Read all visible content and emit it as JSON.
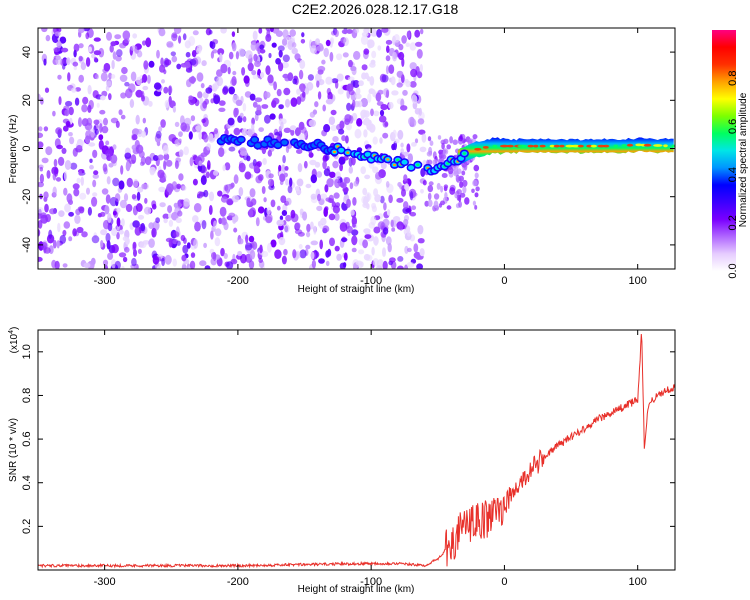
{
  "title": "C2E2.2026.028.12.17.G18",
  "chart_data": [
    {
      "type": "heatmap",
      "panel": "spectrogram",
      "xlabel": "Height of straight line (km)",
      "ylabel": "Frequency (Hz)",
      "xlim": [
        -350,
        128
      ],
      "ylim": [
        -50,
        50
      ],
      "xticks": [
        -300,
        -200,
        -100,
        0,
        100
      ],
      "xtick_labels": [
        "-300",
        "-200",
        "-100",
        "0",
        "100"
      ],
      "yticks": [
        -40,
        -20,
        0,
        20,
        40
      ],
      "ytick_labels": [
        "-40",
        "-20",
        "0",
        "20",
        "40"
      ],
      "colorbar": {
        "label": "Normalized spectral amplitude",
        "range": [
          0,
          1
        ],
        "ticks": [
          0,
          0.2,
          0.4,
          0.6,
          0.8
        ],
        "tick_labels": [
          "0.0",
          "0.2",
          "0.4",
          "0.6",
          "0.8"
        ],
        "colors": [
          "#ffffff",
          "#e6ccff",
          "#b066ff",
          "#7a00ff",
          "#3b00ff",
          "#0000ff",
          "#0096ff",
          "#00e6e6",
          "#00ff60",
          "#7dff00",
          "#ffff00",
          "#ffa000",
          "#ff3000",
          "#ff0000",
          "#ff0080"
        ]
      },
      "trace_center": [
        {
          "x": -215,
          "y": 3
        },
        {
          "x": -190,
          "y": 2.5
        },
        {
          "x": -160,
          "y": 2
        },
        {
          "x": -140,
          "y": 1
        },
        {
          "x": -120,
          "y": -1
        },
        {
          "x": -100,
          "y": -4
        },
        {
          "x": -80,
          "y": -6
        },
        {
          "x": -65,
          "y": -8
        },
        {
          "x": -55,
          "y": -9
        },
        {
          "x": -45,
          "y": -7
        },
        {
          "x": -35,
          "y": -4
        },
        {
          "x": -25,
          "y": -1
        },
        {
          "x": -10,
          "y": 1
        },
        {
          "x": 0,
          "y": 1
        },
        {
          "x": 20,
          "y": 1
        },
        {
          "x": 50,
          "y": 1
        },
        {
          "x": 80,
          "y": 1
        },
        {
          "x": 100,
          "y": 1.5
        },
        {
          "x": 128,
          "y": 1
        }
      ]
    },
    {
      "type": "line",
      "panel": "snr",
      "xlabel": "Height of straight line (km)",
      "ylabel": "SNR (10 * v/v)",
      "y_scale_label": "(x10",
      "y_scale_exponent": "4",
      "xlim": [
        -350,
        128
      ],
      "ylim": [
        0,
        1.1
      ],
      "xticks": [
        -300,
        -200,
        -100,
        0,
        100
      ],
      "xtick_labels": [
        "-300",
        "-200",
        "-100",
        "0",
        "100"
      ],
      "yticks": [
        0.2,
        0.4,
        0.6,
        0.8,
        1.0
      ],
      "ytick_labels": [
        "0.2",
        "0.4",
        "0.6",
        "0.8",
        "1.0"
      ],
      "color": "#e8302a",
      "series": [
        {
          "name": "SNR",
          "points": [
            {
              "x": -350,
              "y": 0.02
            },
            {
              "x": -300,
              "y": 0.02
            },
            {
              "x": -200,
              "y": 0.02
            },
            {
              "x": -100,
              "y": 0.03
            },
            {
              "x": -80,
              "y": 0.03
            },
            {
              "x": -60,
              "y": 0.02
            },
            {
              "x": -50,
              "y": 0.05
            },
            {
              "x": -40,
              "y": 0.12
            },
            {
              "x": -30,
              "y": 0.2
            },
            {
              "x": -20,
              "y": 0.22
            },
            {
              "x": -10,
              "y": 0.24
            },
            {
              "x": 0,
              "y": 0.3
            },
            {
              "x": 10,
              "y": 0.38
            },
            {
              "x": 20,
              "y": 0.46
            },
            {
              "x": 30,
              "y": 0.52
            },
            {
              "x": 40,
              "y": 0.57
            },
            {
              "x": 50,
              "y": 0.61
            },
            {
              "x": 60,
              "y": 0.65
            },
            {
              "x": 70,
              "y": 0.69
            },
            {
              "x": 80,
              "y": 0.72
            },
            {
              "x": 90,
              "y": 0.75
            },
            {
              "x": 100,
              "y": 0.78
            },
            {
              "x": 103,
              "y": 1.1
            },
            {
              "x": 105,
              "y": 0.55
            },
            {
              "x": 108,
              "y": 0.76
            },
            {
              "x": 115,
              "y": 0.8
            },
            {
              "x": 120,
              "y": 0.82
            },
            {
              "x": 128,
              "y": 0.84
            }
          ]
        }
      ]
    }
  ]
}
